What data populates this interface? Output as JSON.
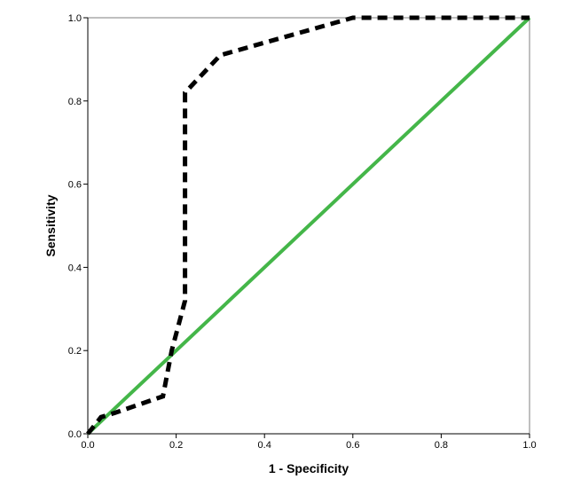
{
  "chart_data": {
    "type": "line",
    "title": "",
    "xlabel": "1 - Specificity",
    "ylabel": "Sensitivity",
    "xlim": [
      0,
      1
    ],
    "ylim": [
      0,
      1
    ],
    "x_ticks": [
      "0.0",
      "0.2",
      "0.4",
      "0.6",
      "0.8",
      "1.0"
    ],
    "y_ticks": [
      "0.0",
      "0.2",
      "0.4",
      "0.6",
      "0.8",
      "1.0"
    ],
    "grid": false,
    "legend": "none",
    "series": [
      {
        "style": "dashed",
        "color": "#000000",
        "x": [
          0.0,
          0.03,
          0.06,
          0.17,
          0.19,
          0.22,
          0.22,
          0.3,
          0.6,
          1.0
        ],
        "y": [
          0.0,
          0.04,
          0.05,
          0.09,
          0.2,
          0.32,
          0.82,
          0.91,
          1.0,
          1.0
        ]
      },
      {
        "style": "solid",
        "color": "#44b649",
        "x": [
          0.0,
          1.0
        ],
        "y": [
          0.0,
          1.0
        ]
      }
    ]
  }
}
